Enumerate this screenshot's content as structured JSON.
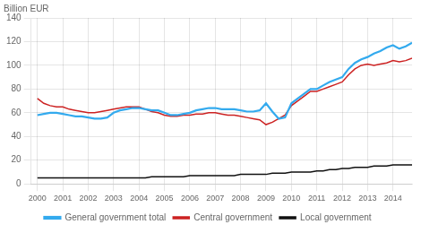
{
  "chart_data": {
    "type": "line",
    "ylabel": "Billion EUR",
    "x": [
      2000,
      2000.25,
      2000.5,
      2000.75,
      2001,
      2001.25,
      2001.5,
      2001.75,
      2002,
      2002.25,
      2002.5,
      2002.75,
      2003,
      2003.25,
      2003.5,
      2003.75,
      2004,
      2004.25,
      2004.5,
      2004.75,
      2005,
      2005.25,
      2005.5,
      2005.75,
      2006,
      2006.25,
      2006.5,
      2006.75,
      2007,
      2007.25,
      2007.5,
      2007.75,
      2008,
      2008.25,
      2008.5,
      2008.75,
      2009,
      2009.25,
      2009.5,
      2009.75,
      2010,
      2010.25,
      2010.5,
      2010.75,
      2011,
      2011.25,
      2011.5,
      2011.75,
      2012,
      2012.25,
      2012.5,
      2012.75,
      2013,
      2013.25,
      2013.5,
      2013.75,
      2014,
      2014.25,
      2014.5,
      2014.75
    ],
    "series": [
      {
        "name": "General government total",
        "color": "#33aaee",
        "values": [
          58,
          59,
          60,
          60,
          59,
          58,
          57,
          57,
          56,
          55,
          55,
          56,
          60,
          62,
          63,
          64,
          64,
          63,
          62,
          62,
          60,
          58,
          58,
          59,
          60,
          62,
          63,
          64,
          64,
          63,
          63,
          63,
          62,
          61,
          61,
          62,
          68,
          61,
          55,
          56,
          68,
          72,
          76,
          80,
          80,
          83,
          86,
          88,
          90,
          97,
          102,
          105,
          107,
          110,
          112,
          115,
          117,
          114,
          116,
          119
        ]
      },
      {
        "name": "Central government",
        "color": "#cc2222",
        "values": [
          72,
          68,
          66,
          65,
          65,
          63,
          62,
          61,
          60,
          60,
          61,
          62,
          63,
          64,
          65,
          65,
          65,
          63,
          61,
          60,
          58,
          57,
          57,
          58,
          58,
          59,
          59,
          60,
          60,
          59,
          58,
          58,
          57,
          56,
          55,
          54,
          50,
          52,
          55,
          58,
          66,
          70,
          74,
          78,
          78,
          80,
          82,
          84,
          86,
          92,
          97,
          100,
          101,
          100,
          101,
          102,
          104,
          103,
          104,
          106
        ]
      },
      {
        "name": "Local government",
        "color": "#111111",
        "values": [
          5,
          5,
          5,
          5,
          5,
          5,
          5,
          5,
          5,
          5,
          5,
          5,
          5,
          5,
          5,
          5,
          5,
          5,
          6,
          6,
          6,
          6,
          6,
          6,
          7,
          7,
          7,
          7,
          7,
          7,
          7,
          7,
          8,
          8,
          8,
          8,
          8,
          9,
          9,
          9,
          10,
          10,
          10,
          10,
          11,
          11,
          12,
          12,
          13,
          13,
          14,
          14,
          14,
          15,
          15,
          15,
          16,
          16,
          16,
          16
        ]
      }
    ],
    "xlim": [
      1999.75,
      2014.75
    ],
    "xticks": [
      2000,
      2001,
      2002,
      2003,
      2004,
      2005,
      2006,
      2007,
      2008,
      2009,
      2010,
      2011,
      2012,
      2013,
      2014
    ],
    "ylim": [
      0,
      140
    ],
    "yticks": [
      0,
      20,
      40,
      60,
      80,
      100,
      120,
      140
    ],
    "grid": true,
    "legend": "bottom"
  }
}
